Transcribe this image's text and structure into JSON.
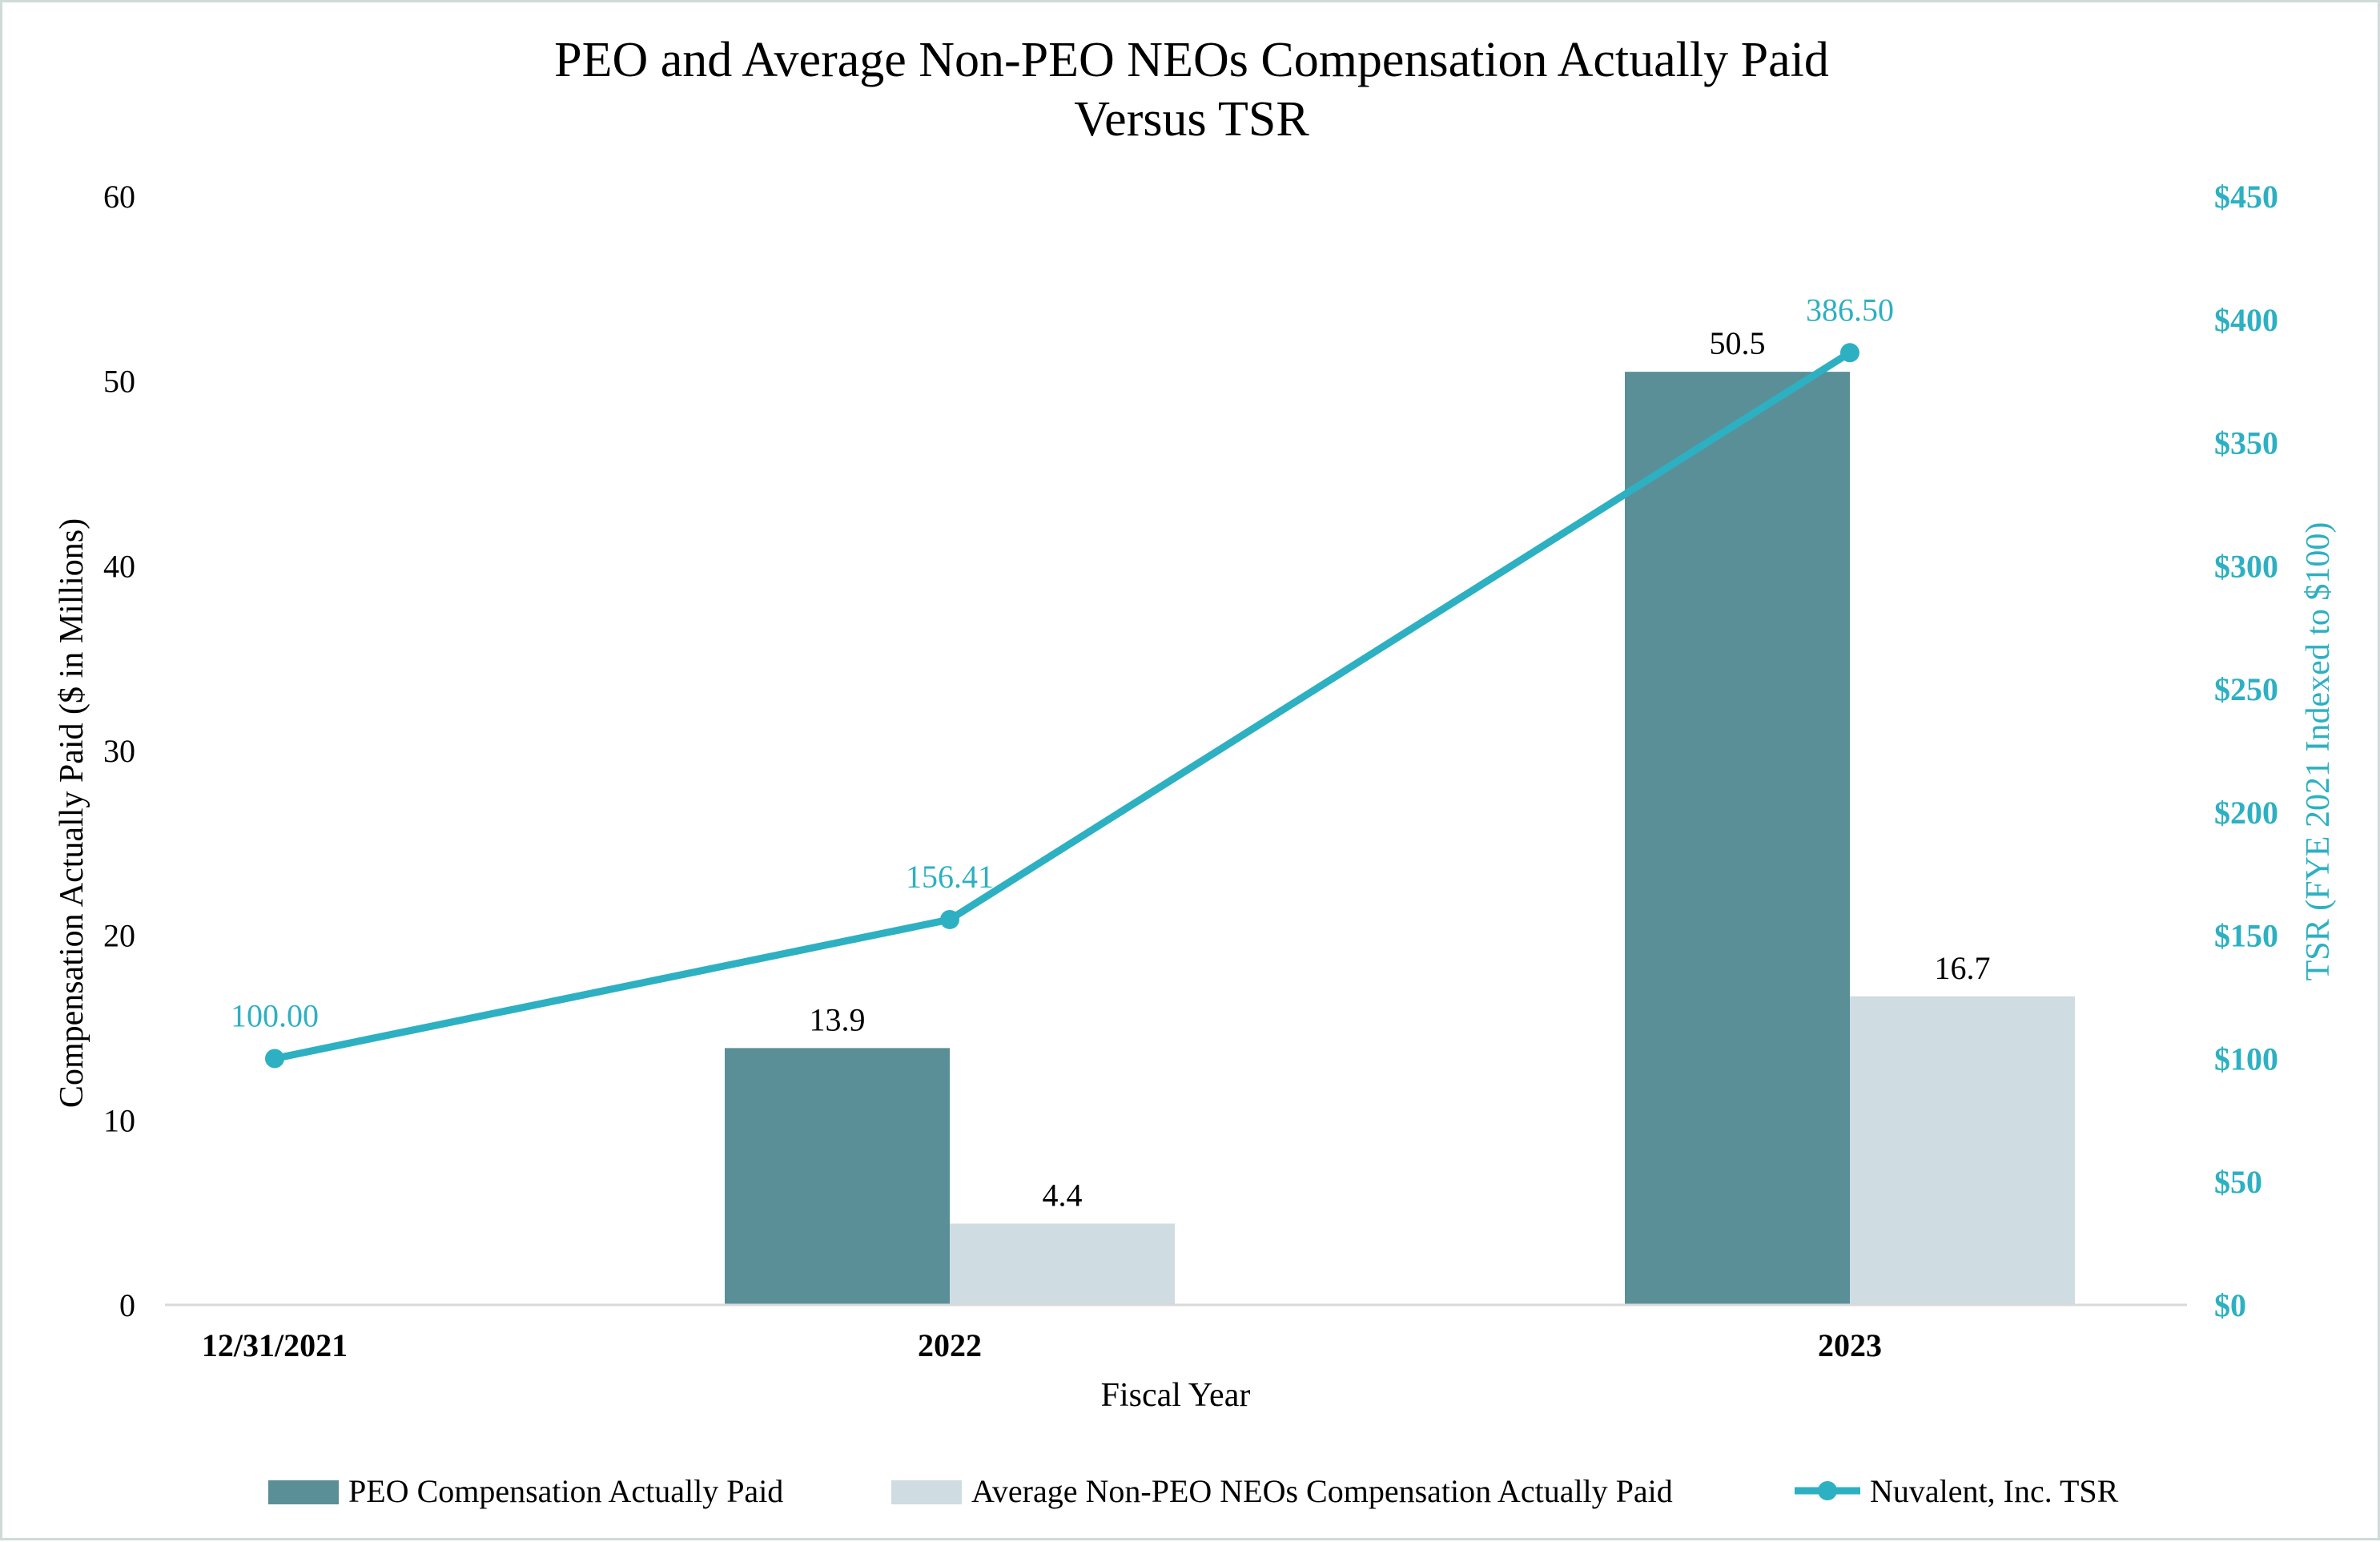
{
  "chart_data": {
    "type": "bar+line",
    "title_line1": "PEO and Average Non-PEO NEOs Compensation Actually Paid",
    "title_line2": "Versus TSR",
    "xlabel": "Fiscal Year",
    "ylabel": "Compensation Actually Paid ($ in Millions)",
    "y2label": "TSR (FYE 2021 Indexed to $100)",
    "categories": [
      "12/31/2021",
      "2022",
      "2023"
    ],
    "ylim": [
      0,
      60
    ],
    "y_ticks": [
      "0",
      "10",
      "20",
      "30",
      "40",
      "50",
      "60"
    ],
    "y2lim": [
      0,
      450
    ],
    "y2_ticks": [
      "$0",
      "$50",
      "$100",
      "$150",
      "$200",
      "$250",
      "$300",
      "$350",
      "$400",
      "$450"
    ],
    "series": [
      {
        "name": "PEO Compensation Actually Paid",
        "kind": "bar",
        "axis": "left",
        "color": "#5a8f98",
        "values": [
          null,
          13.9,
          50.5
        ],
        "labels": [
          null,
          "13.9",
          "50.5"
        ]
      },
      {
        "name": "Average Non-PEO NEOs Compensation Actually Paid",
        "kind": "bar",
        "axis": "right_of_pair",
        "color": "#cfdce1",
        "values": [
          null,
          4.4,
          16.7
        ],
        "labels": [
          null,
          "4.4",
          "16.7"
        ]
      },
      {
        "name": "Nuvalent, Inc. TSR",
        "kind": "line",
        "axis": "right",
        "color": "#2db0c2",
        "values": [
          100.0,
          156.41,
          386.5
        ],
        "labels": [
          "100.00",
          "156.41",
          "386.50"
        ]
      }
    ],
    "legend_position": "bottom",
    "grid": false
  },
  "colors": {
    "frame": "#cfdbd8",
    "axis_line": "#d9d9d9",
    "text": "#000000",
    "right_axis_text": "#2db0c2"
  }
}
